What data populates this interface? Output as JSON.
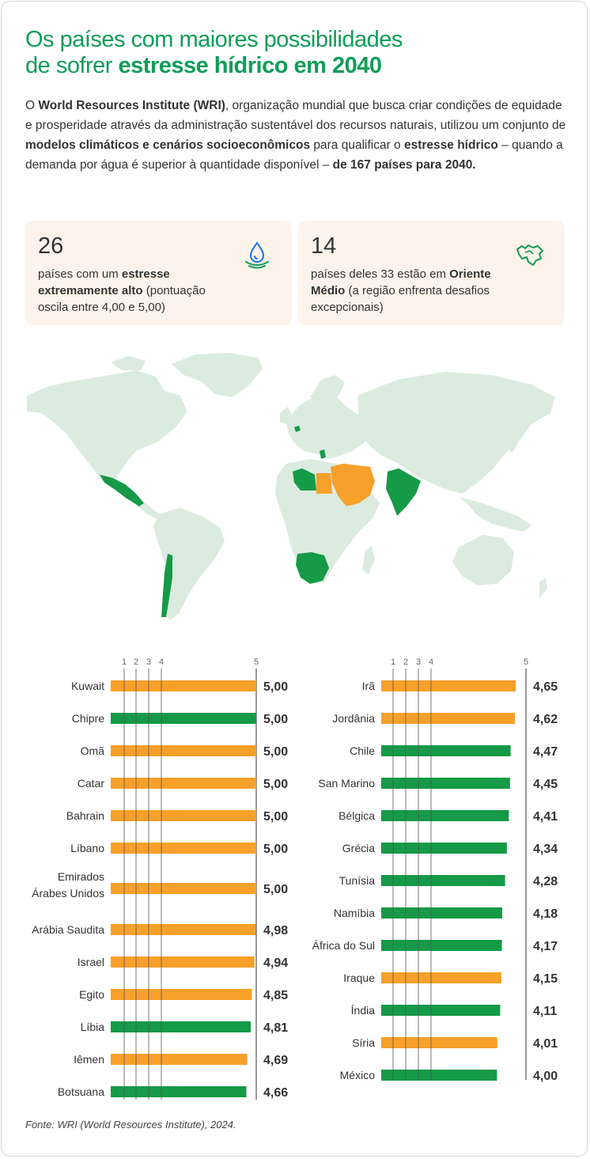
{
  "header": {
    "title_part1": "Os países com maiores possibilidades",
    "title_part2": "de sofrer ",
    "title_bold": "estresse hídrico em 2040"
  },
  "intro": {
    "t1": "O ",
    "b1": "World Resources Institute (WRI)",
    "t2": ", organização mundial que busca criar condições de equidade e prosperidade através da administração sustentável dos recursos naturais, utilizou um conjunto de ",
    "b2": "modelos climáticos e cenários socioeconômicos",
    "t3": " para qualificar o ",
    "b3": "estresse hídrico",
    "t4": " – quando a demanda por água é superior à quantidade disponível – ",
    "b4": "de 167 países para 2040."
  },
  "cards": [
    {
      "number": "26",
      "t1": "países com um ",
      "b1": "estresse extremamente alto",
      "t2": " (pontuação oscila entre 4,00 e 5,00)",
      "icon": "water-drop-icon"
    },
    {
      "number": "14",
      "t1": "países deles 33 estão em ",
      "b1": "Oriente Médio",
      "t2": " (a região enfrenta desafios excepcionais)",
      "icon": "middle-east-map-icon"
    }
  ],
  "colors": {
    "orange": "#f7a02a",
    "green": "#159a47",
    "map_base": "#dcebe0",
    "title_green": "#0f9d58",
    "card_bg": "#fdf3ea"
  },
  "chart_data": {
    "type": "bar",
    "orientation": "horizontal",
    "ticks": [
      "1",
      "2",
      "3",
      "4",
      "5"
    ],
    "xlim": [
      0,
      5
    ],
    "legend": "none",
    "color_meaning": {
      "orange": "Oriente Médio",
      "green": "outras regiões"
    },
    "panels": [
      {
        "categories": [
          "Kuwait",
          "Chipre",
          "Omã",
          "Catar",
          "Bahrain",
          "Líbano",
          "Emirados Árabes Unidos",
          "Arábia Saudita",
          "Israel",
          "Egito",
          "Líbia",
          "Iêmen",
          "Botsuana"
        ],
        "values": [
          5.0,
          5.0,
          5.0,
          5.0,
          5.0,
          5.0,
          5.0,
          4.98,
          4.94,
          4.85,
          4.81,
          4.69,
          4.66
        ],
        "labels": [
          "5,00",
          "5,00",
          "5,00",
          "5,00",
          "5,00",
          "5,00",
          "5,00",
          "4,98",
          "4,94",
          "4,85",
          "4,81",
          "4,69",
          "4,66"
        ],
        "colors": [
          "orange",
          "green",
          "orange",
          "orange",
          "orange",
          "orange",
          "orange",
          "orange",
          "orange",
          "orange",
          "green",
          "orange",
          "green"
        ]
      },
      {
        "categories": [
          "Irã",
          "Jordânia",
          "Chile",
          "San Marino",
          "Bélgica",
          "Grécia",
          "Tunísia",
          "Namíbia",
          "África do Sul",
          "Iraque",
          "Índia",
          "Síria",
          "México"
        ],
        "values": [
          4.65,
          4.62,
          4.47,
          4.45,
          4.41,
          4.34,
          4.28,
          4.18,
          4.17,
          4.15,
          4.11,
          4.01,
          4.0
        ],
        "labels": [
          "4,65",
          "4,62",
          "4,47",
          "4,45",
          "4,41",
          "4,34",
          "4,28",
          "4,18",
          "4,17",
          "4,15",
          "4,11",
          "4,01",
          "4,00"
        ],
        "colors": [
          "orange",
          "orange",
          "green",
          "green",
          "green",
          "green",
          "green",
          "green",
          "green",
          "orange",
          "green",
          "orange",
          "green"
        ]
      }
    ]
  },
  "source": "Fonte: WRI (World Resources Institute), 2024."
}
